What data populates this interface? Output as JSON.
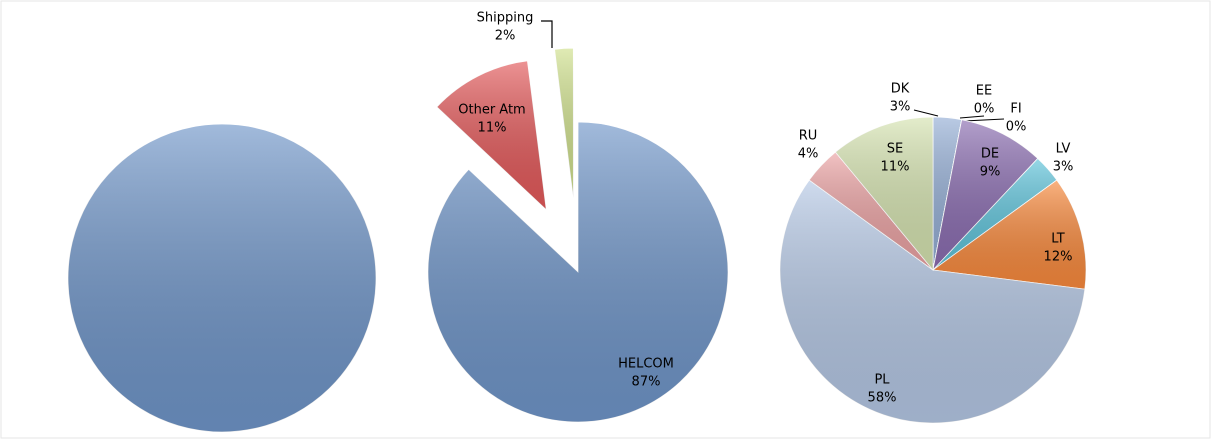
{
  "chart_data": [
    {
      "type": "pie",
      "categories": [
        null
      ],
      "values": [
        100
      ],
      "colors": [
        "#6f95c8"
      ]
    },
    {
      "type": "pie",
      "categories": [
        "HELCOM",
        "Other Atm",
        "Shipping"
      ],
      "values": [
        87,
        11,
        2
      ],
      "value_labels": [
        "87%",
        "11%",
        "2%"
      ],
      "colors": [
        "#6f95c8",
        "#e3595a",
        "#cfe08c"
      ]
    },
    {
      "type": "pie",
      "categories": [
        "DK",
        "EE",
        "FI",
        "DE",
        "LV",
        "LT",
        "PL",
        "RU",
        "SE"
      ],
      "values": [
        3,
        0,
        0,
        9,
        3,
        12,
        58,
        4,
        11
      ],
      "value_labels": [
        "3%",
        "0%",
        "0%",
        "9%",
        "3%",
        "12%",
        "58%",
        "4%",
        "11%"
      ],
      "colors": [
        "#94aed5",
        "#e0604c",
        "#c3d69b",
        "#8a6cb0",
        "#5ec3da",
        "#f8893c",
        "#b4c7e4",
        "#eba2a3",
        "#d5e3b0"
      ]
    }
  ]
}
